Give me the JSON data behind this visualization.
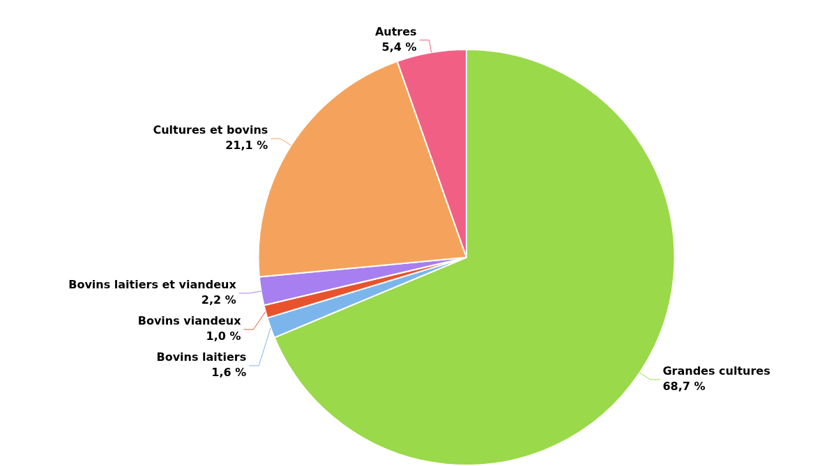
{
  "chart_data": {
    "type": "pie",
    "categories": [
      "Grandes cultures",
      "Bovins laitiers",
      "Bovins viandeux",
      "Bovins laitiers et viandeux",
      "Cultures et bovins",
      "Autres"
    ],
    "values": [
      68.7,
      1.6,
      1.0,
      2.2,
      21.1,
      5.4
    ],
    "value_labels": [
      "68,7 %",
      "1,6 %",
      "1,0 %",
      "2,2 %",
      "21,1 %",
      "5,4 %"
    ],
    "colors": [
      "#9ad94a",
      "#7cb5ec",
      "#e8532e",
      "#a77ff0",
      "#f5a35c",
      "#f25f85"
    ],
    "legend": false
  }
}
